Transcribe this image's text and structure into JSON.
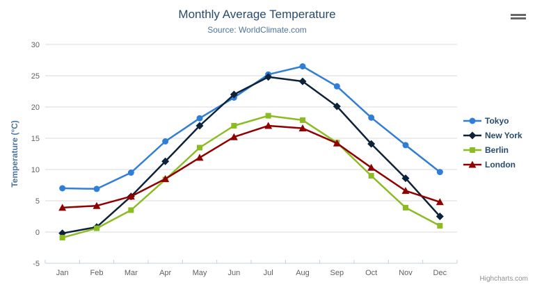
{
  "chart": {
    "credits_label": "Highcharts.com",
    "export_menu_icon": "hamburger-icon"
  },
  "colors": {
    "title": "#274b6d",
    "subtitle": "#4d759e",
    "axis_title": "#4d759e",
    "axis_labels": "#606060",
    "gridline": "#d8d8d8",
    "axis_line": "#c0d0e0",
    "legend_text": "#274b6d",
    "credits": "#909090"
  },
  "chart_data": {
    "type": "line",
    "title": "Monthly Average Temperature",
    "subtitle": "Source: WorldClimate.com",
    "xlabel": "",
    "ylabel": "Temperature (°C)",
    "ylim": [
      -5,
      30
    ],
    "ytick_step": 5,
    "grid": true,
    "legend_position": "right",
    "categories": [
      "Jan",
      "Feb",
      "Mar",
      "Apr",
      "May",
      "Jun",
      "Jul",
      "Aug",
      "Sep",
      "Oct",
      "Nov",
      "Dec"
    ],
    "series": [
      {
        "name": "Tokyo",
        "color": "#2f7ed8",
        "marker": "circle",
        "values": [
          7.0,
          6.9,
          9.5,
          14.5,
          18.2,
          21.5,
          25.2,
          26.5,
          23.3,
          18.3,
          13.9,
          9.6
        ]
      },
      {
        "name": "New York",
        "color": "#0d233a",
        "marker": "diamond",
        "values": [
          -0.2,
          0.8,
          5.7,
          11.3,
          17.0,
          22.0,
          24.8,
          24.1,
          20.1,
          14.1,
          8.6,
          2.5
        ]
      },
      {
        "name": "Berlin",
        "color": "#8bbc21",
        "marker": "square",
        "values": [
          -0.9,
          0.6,
          3.5,
          8.4,
          13.5,
          17.0,
          18.6,
          17.9,
          14.3,
          9.0,
          3.9,
          1.0
        ]
      },
      {
        "name": "London",
        "color": "#910000",
        "marker": "triangle",
        "values": [
          3.9,
          4.2,
          5.7,
          8.5,
          11.9,
          15.2,
          17.0,
          16.6,
          14.2,
          10.3,
          6.6,
          4.8
        ]
      }
    ]
  }
}
